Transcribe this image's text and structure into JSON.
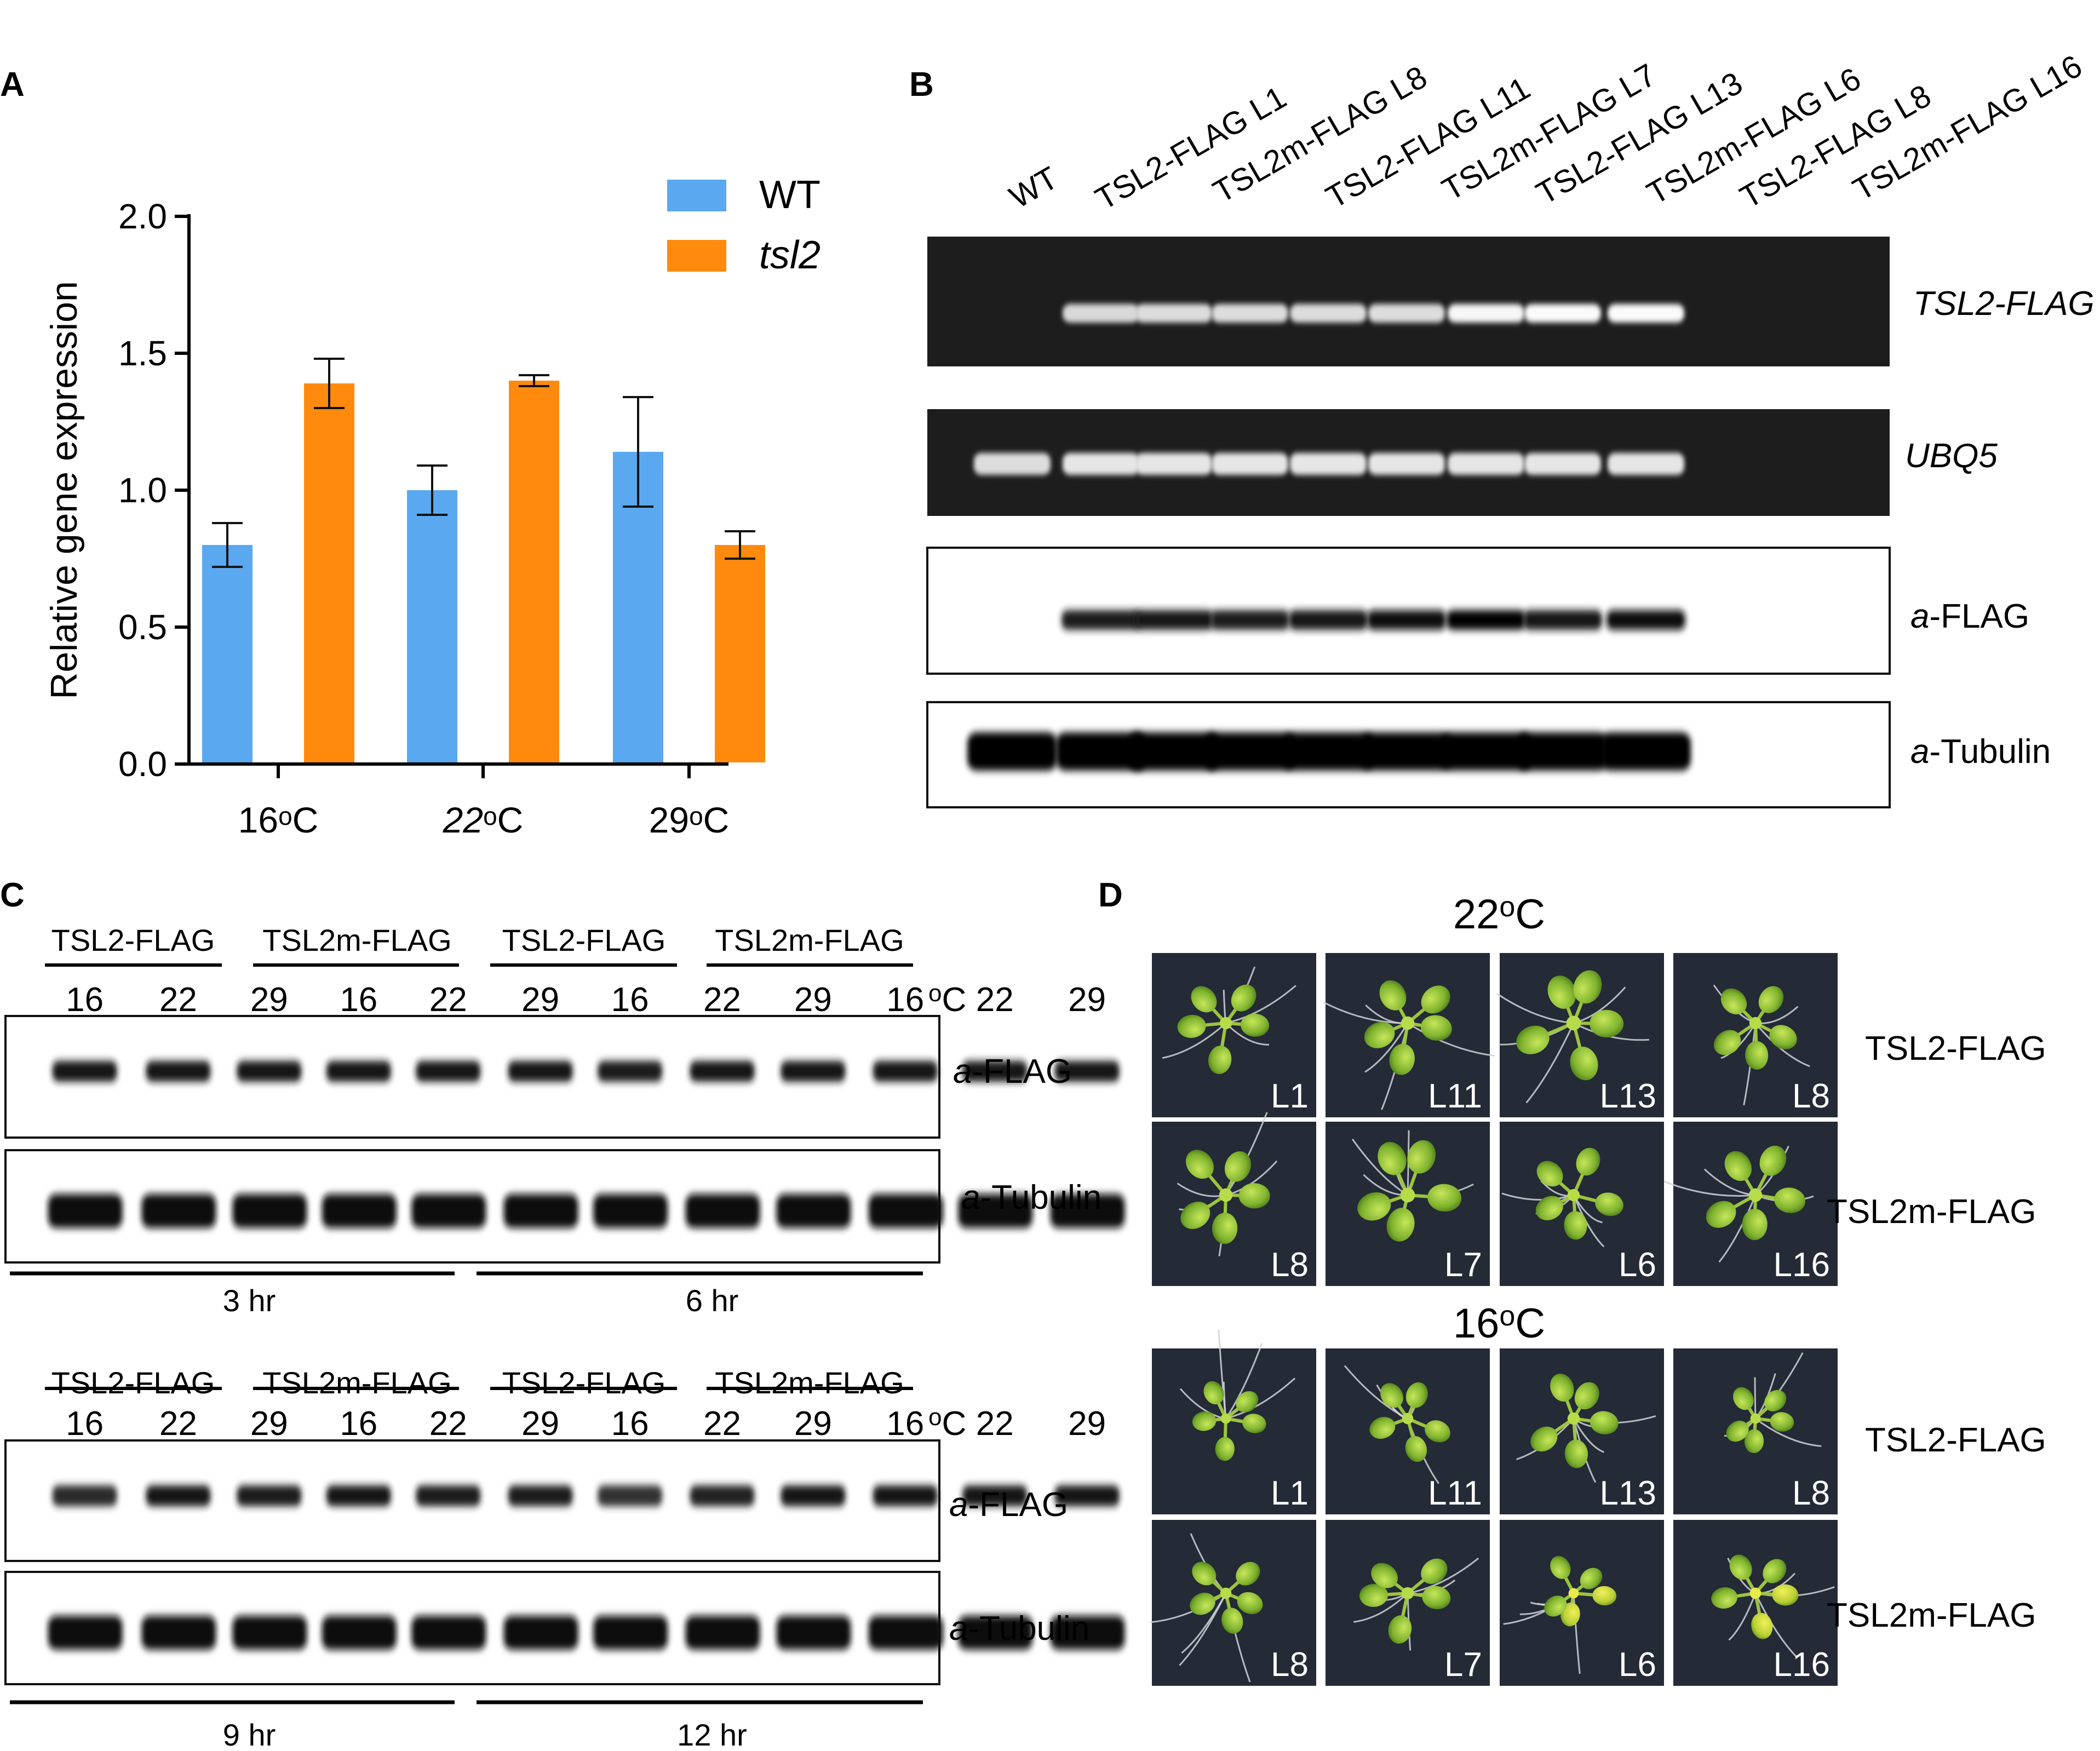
{
  "panels": {
    "A": "A",
    "B": "B",
    "C": "C",
    "D": "D"
  },
  "chart_data": {
    "type": "bar",
    "categories": [
      "16",
      "22",
      "29"
    ],
    "category_unit_prefix": "o",
    "category_unit_suffix": "C",
    "series": [
      {
        "name": "WT",
        "values": [
          0.8,
          1.0,
          1.14
        ],
        "errors": [
          0.08,
          0.09,
          0.2
        ],
        "color": "#5aa8f0"
      },
      {
        "name": "tsl2",
        "values": [
          1.39,
          1.4,
          0.8
        ],
        "errors": [
          0.09,
          0.02,
          0.05
        ],
        "color": "#ff8a0d"
      }
    ],
    "ylabel": "Relative gene expression",
    "ylim": [
      0,
      2.0
    ],
    "yticks": [
      "0.0",
      "0.5",
      "1.0",
      "1.5",
      "2.0"
    ],
    "legend": "top-right",
    "grid": false
  },
  "panel_b": {
    "lanes": [
      "WT",
      "TSL2-FLAG L1",
      "TSL2m-FLAG L8",
      "TSL2-FLAG L11",
      "TSL2m-FLAG L7",
      "TSL2-FLAG L13",
      "TSL2m-FLAG L6",
      "TSL2-FLAG L8",
      "TSL2m-FLAG L16"
    ],
    "blots": [
      {
        "label_italic": "TSL2-FLAG",
        "label_plain": "",
        "style": "gel",
        "intensities": [
          0,
          0.55,
          0.6,
          0.6,
          0.6,
          0.6,
          0.9,
          0.95,
          0.95
        ]
      },
      {
        "label_italic": "UBQ5",
        "label_plain": "",
        "style": "gel",
        "intensities": [
          0.6,
          0.7,
          0.7,
          0.7,
          0.7,
          0.7,
          0.7,
          0.7,
          0.7
        ]
      },
      {
        "label_italic": "a",
        "label_plain": "-FLAG",
        "style": "western",
        "intensities": [
          0,
          0.75,
          0.8,
          0.7,
          0.85,
          0.9,
          1.0,
          0.85,
          0.9
        ]
      },
      {
        "label_italic": "a",
        "label_plain": "-Tubulin",
        "style": "western",
        "intensities": [
          1,
          1,
          1,
          1,
          1,
          1,
          1,
          1,
          1
        ]
      }
    ]
  },
  "panel_c": {
    "unit_o": "o",
    "unit_c": "C",
    "blocks": [
      {
        "groups": [
          "TSL2-FLAG",
          "TSL2m-FLAG",
          "TSL2-FLAG",
          "TSL2m-FLAG"
        ],
        "temps": [
          "16",
          "22",
          "29",
          "16",
          "22",
          "29",
          "16",
          "22",
          "29",
          "16",
          "22",
          "29"
        ],
        "flag_label_italic": "a",
        "flag_label": "-FLAG",
        "tub_label_italic": "a",
        "tub_label": "-Tubulin",
        "times": [
          "3 hr",
          "6 hr"
        ],
        "flag_intensities": [
          0.9,
          0.85,
          0.85,
          0.85,
          0.85,
          0.85,
          0.8,
          0.9,
          0.85,
          0.9,
          0.9,
          0.9
        ]
      },
      {
        "groups": [
          "TSL2-FLAG",
          "TSL2m-FLAG",
          "TSL2-FLAG",
          "TSL2m-FLAG"
        ],
        "temps": [
          "16",
          "22",
          "29",
          "16",
          "22",
          "29",
          "16",
          "22",
          "29",
          "16",
          "22",
          "29"
        ],
        "flag_label_italic": "a",
        "flag_label": "-FLAG",
        "tub_label_italic": "a",
        "tub_label": "-Tubulin",
        "times": [
          "9 hr",
          "12 hr"
        ],
        "flag_intensities": [
          0.6,
          0.85,
          0.8,
          0.85,
          0.8,
          0.75,
          0.55,
          0.7,
          0.85,
          0.9,
          0.85,
          0.85
        ]
      }
    ]
  },
  "panel_d": {
    "unit_o": "o",
    "unit_c": "C",
    "sections": [
      {
        "temp": "22",
        "rows": [
          {
            "label": "TSL2-FLAG",
            "lines": [
              "L1",
              "L11",
              "L13",
              "L8"
            ]
          },
          {
            "label": "TSL2m-FLAG",
            "lines": [
              "L8",
              "L7",
              "L6",
              "L16"
            ]
          }
        ]
      },
      {
        "temp": "16",
        "rows": [
          {
            "label": "TSL2-FLAG",
            "lines": [
              "L1",
              "L11",
              "L13",
              "L8"
            ]
          },
          {
            "label": "TSL2m-FLAG",
            "lines": [
              "L8",
              "L7",
              "L6",
              "L16"
            ]
          }
        ]
      }
    ]
  }
}
